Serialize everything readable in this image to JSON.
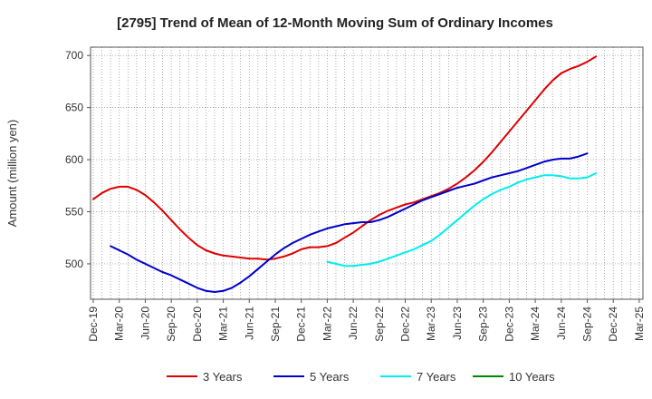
{
  "chart_data": {
    "type": "line",
    "title": "[2795]  Trend of Mean of 12-Month Moving Sum of Ordinary Incomes",
    "xlabel": "",
    "ylabel": "Amount (million yen)",
    "ylim": [
      466,
      708
    ],
    "yticks": [
      500,
      550,
      600,
      650,
      700
    ],
    "grid": true,
    "legend_position": "bottom",
    "x_tick_labels": [
      "Dec-19",
      "Mar-20",
      "Jun-20",
      "Sep-20",
      "Dec-20",
      "Mar-21",
      "Jun-21",
      "Sep-21",
      "Dec-21",
      "Mar-22",
      "Jun-22",
      "Sep-22",
      "Dec-22",
      "Mar-23",
      "Jun-23",
      "Sep-23",
      "Dec-23",
      "Mar-24",
      "Jun-24",
      "Sep-24",
      "Dec-24",
      "Mar-25"
    ],
    "series": [
      {
        "name": "3 Years",
        "color": "#dd0000",
        "start_month_index": 0,
        "values": [
          562,
          568,
          572,
          574,
          574,
          571,
          566,
          559,
          551,
          542,
          533,
          525,
          518,
          513,
          510,
          508,
          507,
          506,
          505,
          505,
          504,
          505,
          507,
          510,
          514,
          516,
          516,
          517,
          520,
          525,
          530,
          536,
          542,
          547,
          551,
          554,
          557,
          559,
          562,
          565,
          568,
          572,
          577,
          583,
          590,
          598,
          607,
          617,
          627,
          637,
          647,
          657,
          667,
          676,
          683,
          687,
          690,
          694,
          699
        ]
      },
      {
        "name": "5 Years",
        "color": "#0000cc",
        "start_month_index": 2,
        "values": [
          517,
          513,
          509,
          504,
          500,
          496,
          492,
          489,
          485,
          481,
          477,
          474,
          473,
          474,
          477,
          482,
          488,
          495,
          502,
          509,
          515,
          520,
          524,
          528,
          531,
          534,
          536,
          538,
          539,
          540,
          540,
          542,
          545,
          549,
          553,
          557,
          561,
          564,
          567,
          570,
          573,
          575,
          577,
          580,
          583,
          585,
          587,
          589,
          592,
          595,
          598,
          600,
          601,
          601,
          603,
          606
        ]
      },
      {
        "name": "7 Years",
        "color": "#00eeee",
        "start_month_index": 27,
        "values": [
          502,
          500,
          498,
          498,
          499,
          500,
          502,
          505,
          508,
          511,
          514,
          518,
          522,
          528,
          535,
          542,
          549,
          556,
          562,
          567,
          571,
          574,
          578,
          581,
          583,
          585,
          585,
          584,
          582,
          582,
          583,
          587
        ]
      },
      {
        "name": "10 Years",
        "color": "#008800",
        "start_month_index": 0,
        "values": []
      }
    ]
  }
}
